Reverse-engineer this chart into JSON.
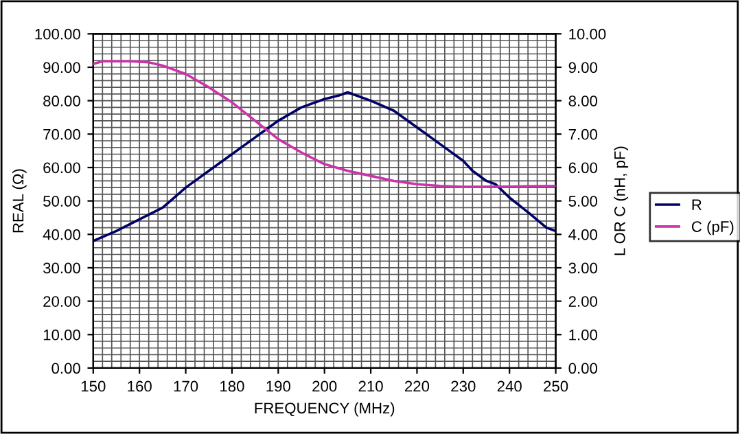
{
  "chart_data": {
    "type": "line",
    "xlabel": "FREQUENCY (MHz)",
    "ylabel": "REAL (Ω)",
    "y2label": "L OR C (nH, pF)",
    "xlim": [
      150,
      250
    ],
    "xticks": [
      150,
      160,
      170,
      180,
      190,
      200,
      210,
      220,
      230,
      240,
      250
    ],
    "ylim": [
      0,
      100
    ],
    "yticks": [
      {
        "value": 0,
        "label": "0.00"
      },
      {
        "value": 10,
        "label": "10.00"
      },
      {
        "value": 20,
        "label": "20.00"
      },
      {
        "value": 30,
        "label": "30.00"
      },
      {
        "value": 40,
        "label": "40.00"
      },
      {
        "value": 50,
        "label": "50.00"
      },
      {
        "value": 60,
        "label": "60.00"
      },
      {
        "value": 70,
        "label": "70.00"
      },
      {
        "value": 80,
        "label": "80.00"
      },
      {
        "value": 90,
        "label": "90.00"
      },
      {
        "value": 100,
        "label": "100.00"
      }
    ],
    "y2lim": [
      0,
      10
    ],
    "y2ticks": [
      {
        "value": 0,
        "label": "0.00"
      },
      {
        "value": 1,
        "label": "1.00"
      },
      {
        "value": 2,
        "label": "2.00"
      },
      {
        "value": 3,
        "label": "3.00"
      },
      {
        "value": 4,
        "label": "4.00"
      },
      {
        "value": 5,
        "label": "5.00"
      },
      {
        "value": 6,
        "label": "6.00"
      },
      {
        "value": 7,
        "label": "7.00"
      },
      {
        "value": 8,
        "label": "8.00"
      },
      {
        "value": 9,
        "label": "9.00"
      },
      {
        "value": 10,
        "label": "10.00"
      }
    ],
    "grid": true,
    "legend": "right",
    "marker": "none",
    "line_style": "solid",
    "series": [
      {
        "name": "R",
        "color": "#000066",
        "x": [
          150,
          155,
          160,
          165,
          170,
          175,
          180,
          185,
          188,
          190,
          195,
          200,
          203,
          205,
          210,
          215,
          220,
          225,
          230,
          232,
          235,
          237,
          240,
          245,
          248,
          250
        ],
        "values": [
          38,
          41,
          44.5,
          48,
          54,
          59,
          64,
          69,
          72,
          74,
          78,
          80.5,
          81.5,
          82.5,
          80,
          77,
          72,
          67,
          62,
          59,
          56,
          55,
          51,
          45.5,
          42,
          41
        ]
      },
      {
        "name": "C (pF)",
        "color": "#cc33aa",
        "axis": "y2",
        "x": [
          150,
          152,
          158,
          162,
          165,
          170,
          175,
          180,
          185,
          190,
          195,
          200,
          205,
          210,
          215,
          220,
          225,
          230,
          240,
          250
        ],
        "values": [
          9.1,
          9.18,
          9.18,
          9.15,
          9.05,
          8.8,
          8.4,
          7.95,
          7.4,
          6.85,
          6.45,
          6.1,
          5.9,
          5.75,
          5.6,
          5.5,
          5.45,
          5.42,
          5.43,
          5.45
        ]
      }
    ]
  }
}
